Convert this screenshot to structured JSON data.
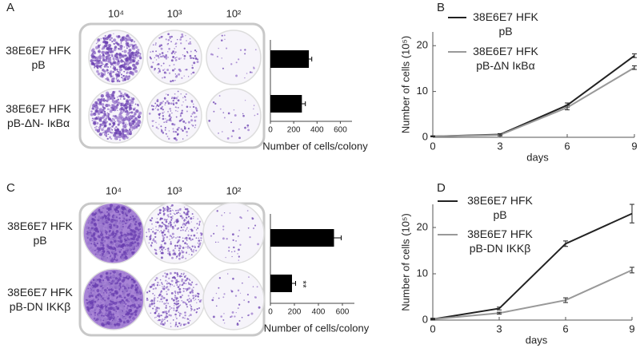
{
  "chart_data": [
    {
      "type": "bar",
      "panel_label": "A",
      "column_labels": [
        "10⁴",
        "10³",
        "10²"
      ],
      "categories": [
        "38E6E7 HFK\npB",
        "38E6E7 HFK\npB-ΔN- IκBα"
      ],
      "values": [
        330,
        270
      ],
      "errors": [
        25,
        30
      ],
      "color": "#000000",
      "xlim": [
        0,
        700
      ],
      "xticks": [
        0,
        200,
        400,
        600
      ],
      "xlabel": "Number of cells/colony"
    },
    {
      "type": "line",
      "panel_label": "B",
      "x": [
        0,
        3,
        6,
        9
      ],
      "xlim": [
        0,
        9
      ],
      "xticks": [
        0,
        3,
        6,
        9
      ],
      "ylim": [
        0,
        23
      ],
      "yticks": [
        0,
        10,
        20
      ],
      "xlabel": "days",
      "ylabel": "Number of cells (10⁵)",
      "series": [
        {
          "name": "38E6E7 HFK\npB",
          "color": "#222222",
          "values": [
            0.2,
            0.6,
            7,
            17.8
          ],
          "errors": [
            0.1,
            0.2,
            0.5,
            0.4
          ]
        },
        {
          "name": "38E6E7 HFK\npB-ΔN IκBα",
          "color": "#999999",
          "values": [
            0.2,
            0.5,
            6.5,
            15.2
          ],
          "errors": [
            0.1,
            0.2,
            0.5,
            0.4
          ]
        }
      ]
    },
    {
      "type": "bar",
      "panel_label": "C",
      "column_labels": [
        "10⁴",
        "10³",
        "10²"
      ],
      "categories": [
        "38E6E7 HFK\npB",
        "38E6E7 HFK\npB-DN IKKβ"
      ],
      "values": [
        530,
        180
      ],
      "errors": [
        60,
        30
      ],
      "annotations": [
        null,
        "**"
      ],
      "color": "#000000",
      "xlim": [
        0,
        700
      ],
      "xticks": [
        0,
        200,
        400,
        600
      ],
      "xlabel": "Number of cells/colony"
    },
    {
      "type": "line",
      "panel_label": "D",
      "x": [
        0,
        3,
        6,
        9
      ],
      "xlim": [
        0,
        9
      ],
      "xticks": [
        0,
        3,
        6,
        9
      ],
      "ylim": [
        0,
        25
      ],
      "yticks": [
        0,
        10,
        20
      ],
      "xlabel": "days",
      "ylabel": "Number of cells (10⁵)",
      "series": [
        {
          "name": "38E6E7 HFK\npB",
          "color": "#222222",
          "values": [
            0.2,
            2.5,
            16.5,
            23
          ],
          "errors": [
            0.2,
            0.3,
            0.6,
            2
          ]
        },
        {
          "name": "38E6E7 HFK\npB-DN IKKβ",
          "color": "#999999",
          "values": [
            0.2,
            1.5,
            4.3,
            10.8
          ],
          "errors": [
            0.1,
            0.2,
            0.5,
            0.6
          ]
        }
      ]
    }
  ]
}
